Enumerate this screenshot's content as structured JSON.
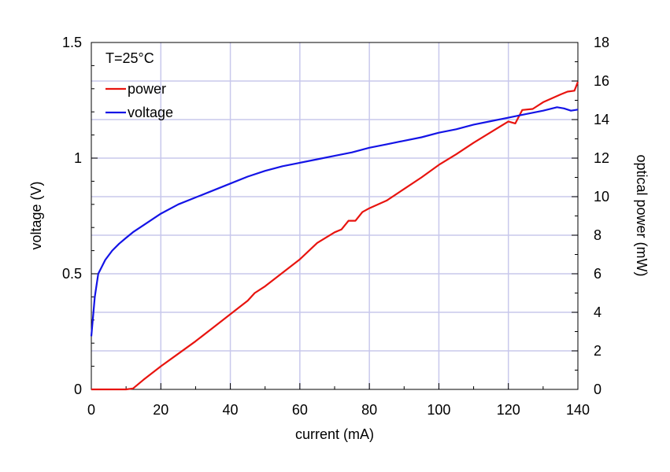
{
  "chart_data": {
    "type": "line",
    "annotation": "T=25°C",
    "xlabel": "current (mA)",
    "ylabel_left": "voltage (V)",
    "ylabel_right": "optical power (mW)",
    "xlim": [
      0,
      140
    ],
    "ylim_left": [
      0,
      1.5
    ],
    "ylim_right": [
      0,
      18
    ],
    "x_ticks": [
      "0",
      "20",
      "40",
      "60",
      "80",
      "100",
      "120",
      "140"
    ],
    "y_left_ticks": [
      "0",
      "0.5",
      "1",
      "1.5"
    ],
    "y_right_ticks": [
      "0",
      "2",
      "4",
      "6",
      "8",
      "10",
      "12",
      "14",
      "16",
      "18"
    ],
    "grid": true,
    "legend_position": "top-left",
    "series": [
      {
        "name": "power",
        "axis": "right",
        "color": "#e8140f",
        "points": [
          [
            0,
            0
          ],
          [
            5,
            0
          ],
          [
            10,
            0
          ],
          [
            12,
            0.05
          ],
          [
            15,
            0.5
          ],
          [
            20,
            1.2
          ],
          [
            25,
            1.85
          ],
          [
            30,
            2.5
          ],
          [
            35,
            3.2
          ],
          [
            40,
            3.9
          ],
          [
            45,
            4.6
          ],
          [
            47,
            5.0
          ],
          [
            50,
            5.35
          ],
          [
            55,
            6.05
          ],
          [
            60,
            6.75
          ],
          [
            65,
            7.6
          ],
          [
            70,
            8.15
          ],
          [
            72,
            8.3
          ],
          [
            74,
            8.75
          ],
          [
            76,
            8.75
          ],
          [
            78,
            9.2
          ],
          [
            80,
            9.4
          ],
          [
            85,
            9.8
          ],
          [
            90,
            10.4
          ],
          [
            95,
            11.0
          ],
          [
            100,
            11.65
          ],
          [
            105,
            12.2
          ],
          [
            110,
            12.8
          ],
          [
            115,
            13.35
          ],
          [
            120,
            13.9
          ],
          [
            122,
            13.8
          ],
          [
            124,
            14.5
          ],
          [
            127,
            14.55
          ],
          [
            130,
            14.9
          ],
          [
            135,
            15.3
          ],
          [
            137,
            15.45
          ],
          [
            139,
            15.5
          ],
          [
            140,
            15.95
          ]
        ]
      },
      {
        "name": "voltage",
        "axis": "left",
        "color": "#1414e6",
        "points": [
          [
            0,
            0.23
          ],
          [
            1,
            0.4
          ],
          [
            2,
            0.5
          ],
          [
            4,
            0.56
          ],
          [
            6,
            0.6
          ],
          [
            8,
            0.63
          ],
          [
            10,
            0.655
          ],
          [
            12,
            0.68
          ],
          [
            15,
            0.71
          ],
          [
            20,
            0.76
          ],
          [
            25,
            0.8
          ],
          [
            30,
            0.83
          ],
          [
            35,
            0.86
          ],
          [
            40,
            0.89
          ],
          [
            45,
            0.92
          ],
          [
            50,
            0.945
          ],
          [
            55,
            0.965
          ],
          [
            60,
            0.98
          ],
          [
            65,
            0.995
          ],
          [
            70,
            1.01
          ],
          [
            75,
            1.025
          ],
          [
            80,
            1.045
          ],
          [
            85,
            1.06
          ],
          [
            90,
            1.075
          ],
          [
            95,
            1.09
          ],
          [
            100,
            1.11
          ],
          [
            105,
            1.125
          ],
          [
            110,
            1.145
          ],
          [
            115,
            1.16
          ],
          [
            120,
            1.175
          ],
          [
            125,
            1.19
          ],
          [
            130,
            1.205
          ],
          [
            134,
            1.22
          ],
          [
            136,
            1.215
          ],
          [
            138,
            1.205
          ],
          [
            140,
            1.21
          ]
        ]
      }
    ]
  }
}
